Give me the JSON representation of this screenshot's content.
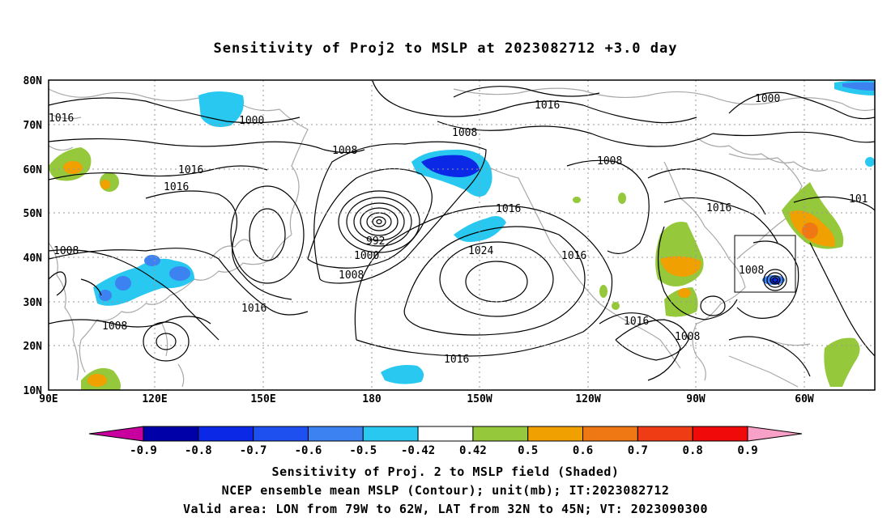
{
  "title": "Sensitivity of Proj2 to MSLP at 2023082712 +3.0 day",
  "lat_labels": [
    "80N",
    "70N",
    "60N",
    "50N",
    "40N",
    "30N",
    "20N",
    "10N"
  ],
  "lon_labels": [
    "90E",
    "120E",
    "150E",
    "180",
    "150W",
    "120W",
    "90W",
    "60W"
  ],
  "contour_labels": [
    {
      "text": "1016"
    },
    {
      "text": "1000"
    },
    {
      "text": "1016"
    },
    {
      "text": "1008"
    },
    {
      "text": "1000"
    },
    {
      "text": "1008"
    },
    {
      "text": "1016"
    },
    {
      "text": "1016"
    },
    {
      "text": "1008"
    },
    {
      "text": "1016"
    },
    {
      "text": "1016"
    },
    {
      "text": "101"
    },
    {
      "text": "1008"
    },
    {
      "text": "992"
    },
    {
      "text": "1000"
    },
    {
      "text": "1008"
    },
    {
      "text": "1024"
    },
    {
      "text": "1016"
    },
    {
      "text": "1008"
    },
    {
      "text": "1016"
    },
    {
      "text": "1008"
    },
    {
      "text": "1016"
    },
    {
      "text": "1008"
    },
    {
      "text": "1016"
    }
  ],
  "colorbar": {
    "labels": [
      "-0.9",
      "-0.8",
      "-0.7",
      "-0.6",
      "-0.5",
      "-0.42",
      "0.42",
      "0.5",
      "0.6",
      "0.7",
      "0.8",
      "0.9"
    ],
    "colors": [
      "#c8009e",
      "#0000a8",
      "#0a28e6",
      "#1e50f0",
      "#3c82f0",
      "#28c8f0",
      "#ffffff",
      "#96c83c",
      "#f0a000",
      "#f07814",
      "#f03c14",
      "#f00a0a",
      "#f8a0c8"
    ]
  },
  "captions": {
    "line1": "Sensitivity of Proj. 2 to MSLP field (Shaded)",
    "line2": "NCEP ensemble mean MSLP (Contour); unit(mb); IT:2023082712",
    "line3": "Valid area: LON from 79W to 62W, LAT from 32N to 45N; VT: 2023090300"
  }
}
